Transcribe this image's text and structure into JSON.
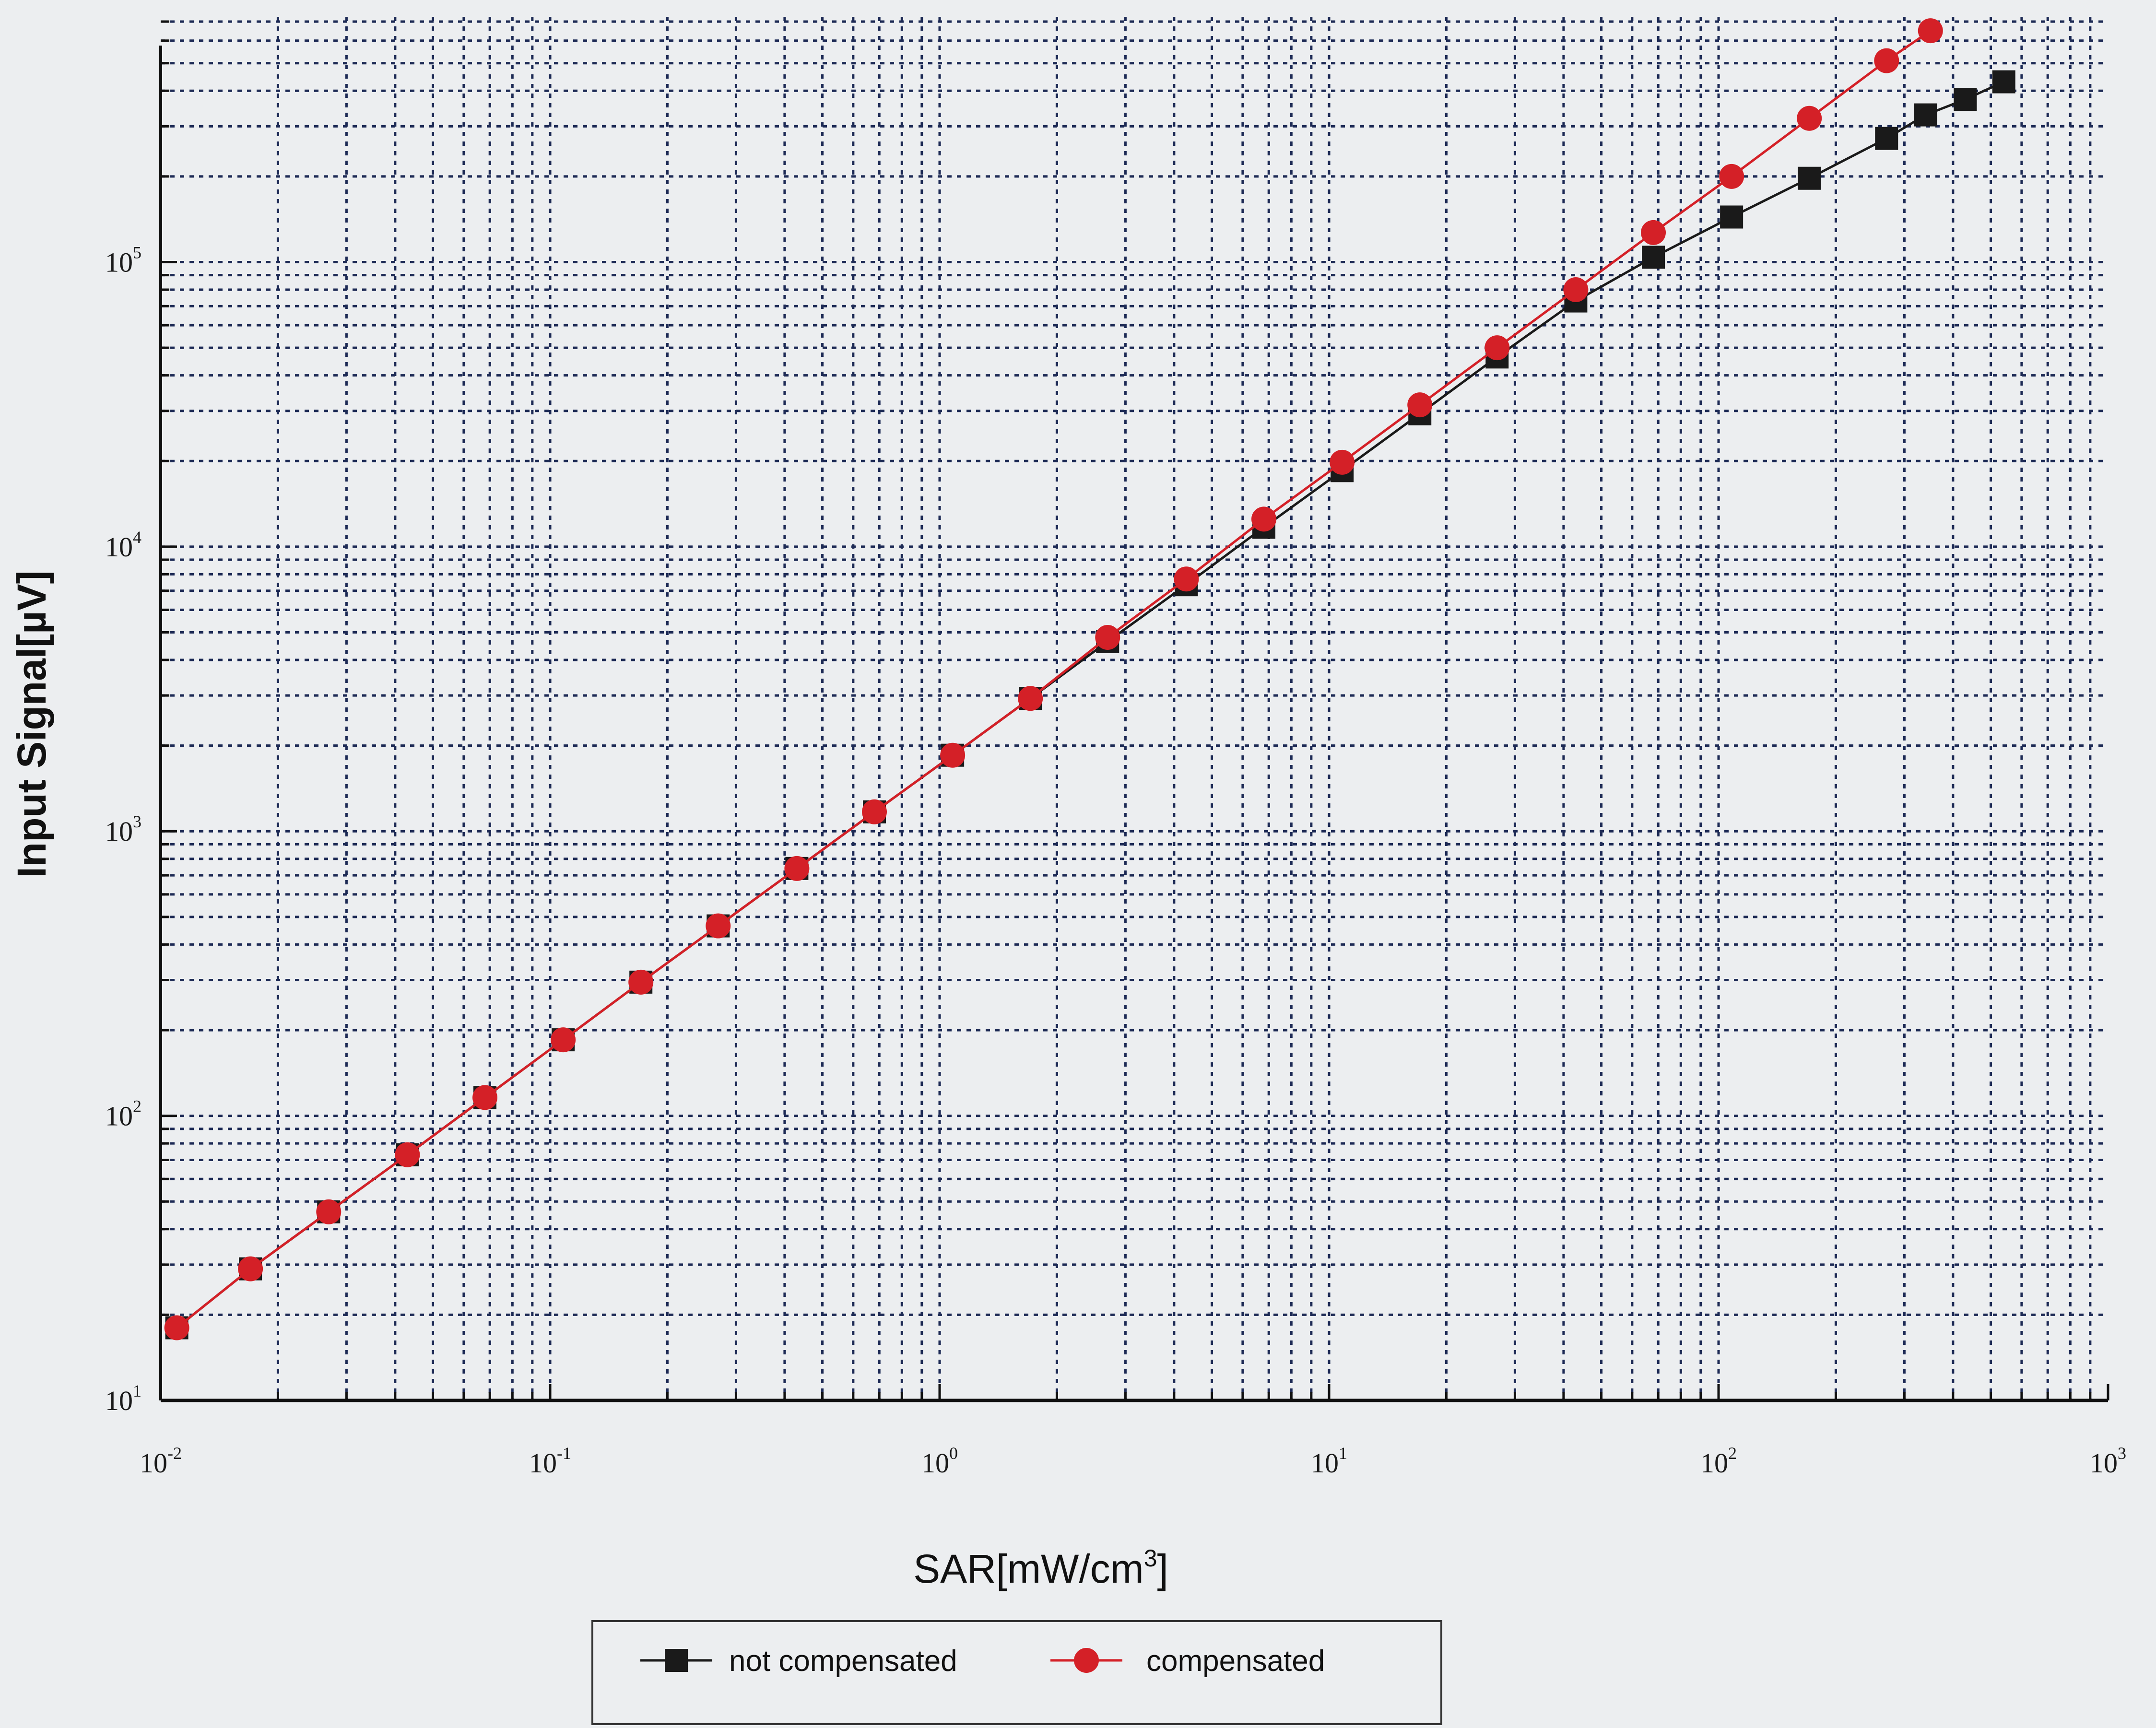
{
  "chart_data": {
    "type": "line",
    "xlabel": {
      "main": "SAR[mW/cm",
      "sup": "3",
      "end": "]"
    },
    "ylabel": "Input Signal[µV]",
    "xscale": "log",
    "yscale": "log",
    "xlim": [
      0.01,
      1000
    ],
    "ylim": [
      10,
      700000
    ],
    "grid": true,
    "legend_position": "bottom-center",
    "x_ticks": [
      {
        "value": 0.01,
        "base": "10",
        "exp": "-2"
      },
      {
        "value": 0.1,
        "base": "10",
        "exp": "-1"
      },
      {
        "value": 1,
        "base": "10",
        "exp": "0"
      },
      {
        "value": 10,
        "base": "10",
        "exp": "1"
      },
      {
        "value": 100,
        "base": "10",
        "exp": "2"
      },
      {
        "value": 1000,
        "base": "10",
        "exp": "3"
      }
    ],
    "y_ticks": [
      {
        "value": 10,
        "base": "10",
        "exp": "1"
      },
      {
        "value": 100,
        "base": "10",
        "exp": "2"
      },
      {
        "value": 1000,
        "base": "10",
        "exp": "3"
      },
      {
        "value": 10000,
        "base": "10",
        "exp": "4"
      },
      {
        "value": 100000,
        "base": "10",
        "exp": "5"
      }
    ],
    "series": [
      {
        "name": "not compensated",
        "color": "#1a1a1a",
        "marker": "square",
        "x": [
          0.011,
          0.017,
          0.027,
          0.043,
          0.068,
          0.108,
          0.171,
          0.27,
          0.43,
          0.68,
          1.08,
          1.71,
          2.7,
          4.3,
          6.8,
          10.8,
          17.1,
          27,
          43,
          68,
          108,
          171,
          270,
          340,
          430,
          540
        ],
        "y": [
          18,
          29,
          46,
          73,
          116,
          185,
          295,
          465,
          740,
          1170,
          1850,
          2930,
          4640,
          7350,
          11700,
          18500,
          29300,
          46400,
          73000,
          104000,
          144000,
          197000,
          272000,
          329000,
          373000,
          430000
        ]
      },
      {
        "name": "compensated",
        "color": "#d42027",
        "marker": "circle",
        "x": [
          0.011,
          0.017,
          0.027,
          0.043,
          0.068,
          0.108,
          0.171,
          0.27,
          0.43,
          0.68,
          1.08,
          1.71,
          2.7,
          4.3,
          6.8,
          10.8,
          17.1,
          27,
          43,
          68,
          108,
          171,
          270,
          350
        ],
        "y": [
          18,
          29,
          46,
          73,
          116,
          185,
          295,
          465,
          740,
          1170,
          1850,
          2930,
          4800,
          7700,
          12500,
          19800,
          31500,
          50000,
          80000,
          127000,
          200000,
          320000,
          510000,
          650000
        ]
      }
    ]
  }
}
